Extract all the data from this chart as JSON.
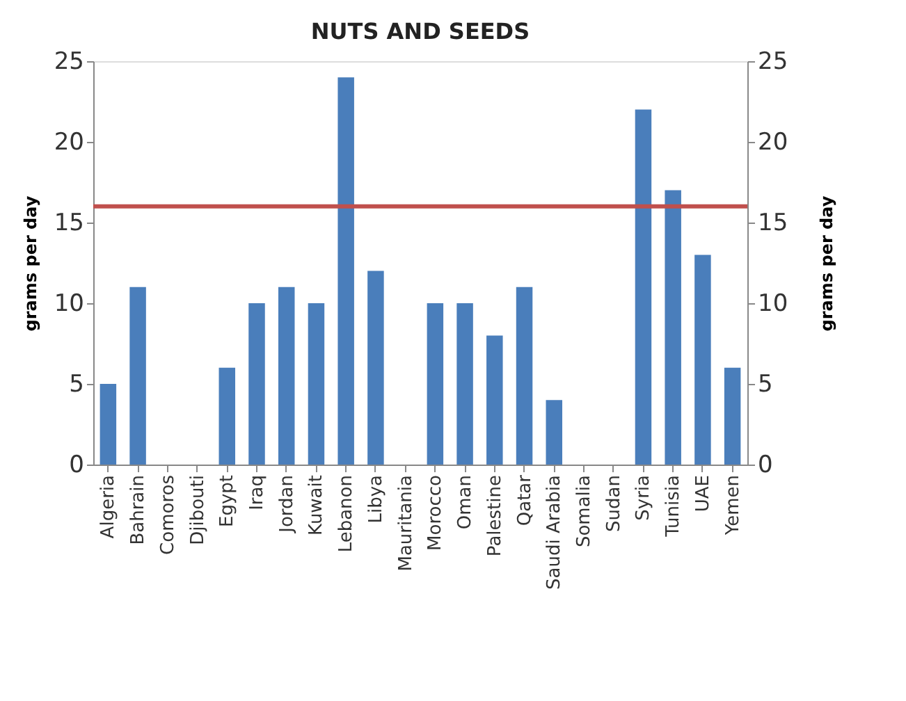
{
  "chart_data": {
    "type": "bar",
    "title": "NUTS AND SEEDS",
    "categories": [
      "Algeria",
      "Bahrain",
      "Comoros",
      "Djibouti",
      "Egypt",
      "Iraq",
      "Jordan",
      "Kuwait",
      "Lebanon",
      "Libya",
      "Mauritania",
      "Morocco",
      "Oman",
      "Palestine",
      "Qatar",
      "Saudi Arabia",
      "Somalia",
      "Sudan",
      "Syria",
      "Tunisia",
      "UAE",
      "Yemen"
    ],
    "values": [
      5,
      11,
      null,
      null,
      6,
      10,
      11,
      10,
      24,
      12,
      null,
      10,
      10,
      8,
      11,
      4,
      null,
      null,
      22,
      17,
      13,
      6
    ],
    "color": "#4a7ebb",
    "ylabel": "grams per day",
    "y2label": "grams per day",
    "ylim": [
      0,
      25
    ],
    "yticks": [
      0,
      5,
      10,
      15,
      20,
      25
    ],
    "y2lim": [
      0,
      25
    ],
    "y2ticks": [
      0,
      5,
      10,
      15,
      20,
      25
    ],
    "ref_lines": [
      {
        "axis": "y",
        "value": 16,
        "color": "#c0504d"
      }
    ],
    "grid": false
  }
}
